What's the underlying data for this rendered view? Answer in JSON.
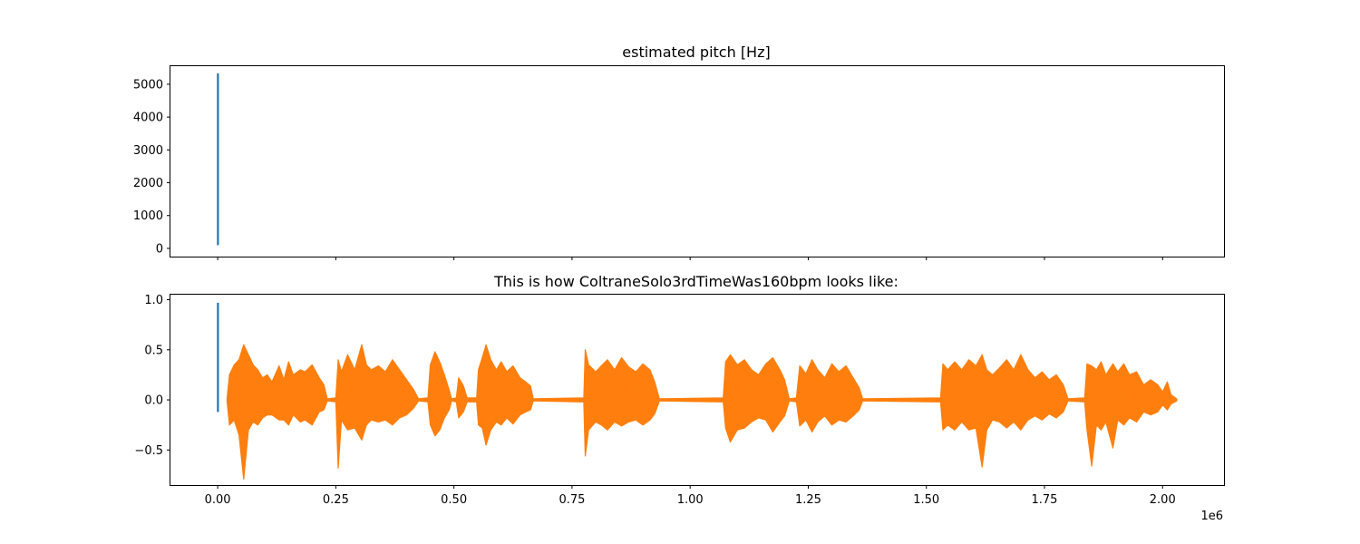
{
  "chart_data": [
    {
      "type": "line",
      "title": "estimated pitch [Hz]",
      "xlabel": "",
      "ylabel": "",
      "xlim": [
        -100000,
        2130000
      ],
      "ylim": [
        -250,
        5550
      ],
      "x_offset_label": "1e6",
      "x_tick_values": [
        0,
        250000,
        500000,
        750000,
        1000000,
        1250000,
        1500000,
        1750000,
        2000000
      ],
      "x_tick_labels_visible": false,
      "y_ticks": [
        0,
        1000,
        2000,
        3000,
        4000,
        5000
      ],
      "y_tick_labels": [
        "0",
        "1000",
        "2000",
        "3000",
        "4000",
        "5000"
      ],
      "grid": false,
      "series": [
        {
          "color": "#1f77b4",
          "description_x_range": [
            0,
            1000
          ],
          "y_min": 100,
          "y_max": 5330
        }
      ]
    },
    {
      "type": "line",
      "title": "This is how ColtraneSolo3rdTimeWas160bpm looks like:",
      "xlabel": "",
      "ylabel": "",
      "xlim": [
        -100000,
        2130000
      ],
      "ylim": [
        -0.85,
        1.05
      ],
      "x_offset_label": "1e6",
      "x_ticks": [
        0,
        250000,
        500000,
        750000,
        1000000,
        1250000,
        1500000,
        1750000,
        2000000
      ],
      "x_tick_labels": [
        "0.00",
        "0.25",
        "0.50",
        "0.75",
        "1.00",
        "1.25",
        "1.50",
        "1.75",
        "2.00"
      ],
      "y_ticks": [
        -0.5,
        0.0,
        0.5,
        1.0
      ],
      "y_tick_labels": [
        "−0.5",
        "0.0",
        "0.5",
        "1.0"
      ],
      "grid": false,
      "series": [
        {
          "color": "#1f77b4",
          "x_range": [
            0,
            1000
          ],
          "y_min": -0.12,
          "y_max": 0.97
        },
        {
          "color": "#ff7f0e",
          "x_range": [
            20000,
            2030000
          ],
          "y_min": -0.79,
          "y_max": 0.55,
          "envelope": [
            [
              20000,
              0.02,
              -0.02
            ],
            [
              25000,
              0.25,
              -0.25
            ],
            [
              35000,
              0.35,
              -0.2
            ],
            [
              45000,
              0.4,
              -0.35
            ],
            [
              55000,
              0.55,
              -0.79
            ],
            [
              65000,
              0.45,
              -0.3
            ],
            [
              75000,
              0.35,
              -0.22
            ],
            [
              85000,
              0.3,
              -0.25
            ],
            [
              95000,
              0.22,
              -0.18
            ],
            [
              105000,
              0.25,
              -0.15
            ],
            [
              115000,
              0.18,
              -0.15
            ],
            [
              130000,
              0.34,
              -0.2
            ],
            [
              140000,
              0.2,
              -0.2
            ],
            [
              150000,
              0.38,
              -0.25
            ],
            [
              160000,
              0.25,
              -0.15
            ],
            [
              175000,
              0.3,
              -0.22
            ],
            [
              185000,
              0.28,
              -0.2
            ],
            [
              200000,
              0.35,
              -0.25
            ],
            [
              215000,
              0.22,
              -0.12
            ],
            [
              225000,
              0.15,
              -0.1
            ],
            [
              232000,
              0.01,
              -0.01
            ],
            [
              250000,
              0.02,
              -0.02
            ],
            [
              255000,
              0.4,
              -0.68
            ],
            [
              262000,
              0.28,
              -0.2
            ],
            [
              275000,
              0.45,
              -0.3
            ],
            [
              290000,
              0.3,
              -0.28
            ],
            [
              305000,
              0.55,
              -0.4
            ],
            [
              315000,
              0.35,
              -0.25
            ],
            [
              325000,
              0.3,
              -0.2
            ],
            [
              340000,
              0.34,
              -0.22
            ],
            [
              355000,
              0.28,
              -0.2
            ],
            [
              370000,
              0.4,
              -0.25
            ],
            [
              385000,
              0.3,
              -0.18
            ],
            [
              400000,
              0.2,
              -0.15
            ],
            [
              415000,
              0.1,
              -0.08
            ],
            [
              425000,
              0.01,
              -0.01
            ],
            [
              445000,
              0.02,
              -0.02
            ],
            [
              450000,
              0.35,
              -0.25
            ],
            [
              460000,
              0.48,
              -0.36
            ],
            [
              470000,
              0.38,
              -0.3
            ],
            [
              480000,
              0.25,
              -0.18
            ],
            [
              490000,
              0.1,
              -0.1
            ],
            [
              495000,
              0.01,
              -0.01
            ],
            [
              505000,
              0.02,
              -0.02
            ],
            [
              510000,
              0.22,
              -0.18
            ],
            [
              520000,
              0.14,
              -0.12
            ],
            [
              528000,
              0.02,
              -0.02
            ],
            [
              548000,
              0.02,
              -0.02
            ],
            [
              552000,
              0.3,
              -0.25
            ],
            [
              560000,
              0.42,
              -0.28
            ],
            [
              568000,
              0.55,
              -0.45
            ],
            [
              578000,
              0.4,
              -0.3
            ],
            [
              590000,
              0.3,
              -0.22
            ],
            [
              600000,
              0.38,
              -0.25
            ],
            [
              612000,
              0.28,
              -0.18
            ],
            [
              625000,
              0.34,
              -0.24
            ],
            [
              640000,
              0.22,
              -0.15
            ],
            [
              652000,
              0.18,
              -0.12
            ],
            [
              662000,
              0.14,
              -0.1
            ],
            [
              668000,
              0.01,
              -0.01
            ],
            [
              775000,
              0.02,
              -0.02
            ],
            [
              778000,
              0.5,
              -0.56
            ],
            [
              785000,
              0.35,
              -0.3
            ],
            [
              800000,
              0.28,
              -0.22
            ],
            [
              812000,
              0.34,
              -0.25
            ],
            [
              825000,
              0.4,
              -0.3
            ],
            [
              840000,
              0.3,
              -0.22
            ],
            [
              855000,
              0.42,
              -0.26
            ],
            [
              870000,
              0.33,
              -0.22
            ],
            [
              885000,
              0.28,
              -0.2
            ],
            [
              900000,
              0.36,
              -0.25
            ],
            [
              915000,
              0.3,
              -0.2
            ],
            [
              925000,
              0.18,
              -0.14
            ],
            [
              935000,
              0.01,
              -0.01
            ],
            [
              1070000,
              0.02,
              -0.02
            ],
            [
              1075000,
              0.38,
              -0.28
            ],
            [
              1085000,
              0.45,
              -0.42
            ],
            [
              1100000,
              0.35,
              -0.3
            ],
            [
              1115000,
              0.4,
              -0.28
            ],
            [
              1130000,
              0.3,
              -0.22
            ],
            [
              1145000,
              0.25,
              -0.18
            ],
            [
              1160000,
              0.36,
              -0.2
            ],
            [
              1175000,
              0.42,
              -0.32
            ],
            [
              1190000,
              0.3,
              -0.22
            ],
            [
              1200000,
              0.2,
              -0.16
            ],
            [
              1210000,
              0.01,
              -0.01
            ],
            [
              1225000,
              0.02,
              -0.02
            ],
            [
              1232000,
              0.34,
              -0.26
            ],
            [
              1245000,
              0.26,
              -0.2
            ],
            [
              1258000,
              0.4,
              -0.32
            ],
            [
              1270000,
              0.3,
              -0.22
            ],
            [
              1285000,
              0.22,
              -0.16
            ],
            [
              1300000,
              0.36,
              -0.25
            ],
            [
              1315000,
              0.28,
              -0.2
            ],
            [
              1330000,
              0.34,
              -0.22
            ],
            [
              1345000,
              0.22,
              -0.16
            ],
            [
              1358000,
              0.12,
              -0.1
            ],
            [
              1365000,
              0.01,
              -0.01
            ],
            [
              1530000,
              0.02,
              -0.02
            ],
            [
              1535000,
              0.36,
              -0.3
            ],
            [
              1545000,
              0.3,
              -0.25
            ],
            [
              1560000,
              0.38,
              -0.3
            ],
            [
              1575000,
              0.3,
              -0.22
            ],
            [
              1590000,
              0.4,
              -0.3
            ],
            [
              1605000,
              0.34,
              -0.28
            ],
            [
              1618000,
              0.45,
              -0.67
            ],
            [
              1628000,
              0.3,
              -0.3
            ],
            [
              1640000,
              0.25,
              -0.2
            ],
            [
              1655000,
              0.32,
              -0.22
            ],
            [
              1670000,
              0.4,
              -0.28
            ],
            [
              1685000,
              0.3,
              -0.22
            ],
            [
              1700000,
              0.45,
              -0.3
            ],
            [
              1715000,
              0.3,
              -0.2
            ],
            [
              1730000,
              0.22,
              -0.16
            ],
            [
              1745000,
              0.28,
              -0.2
            ],
            [
              1760000,
              0.2,
              -0.14
            ],
            [
              1775000,
              0.25,
              -0.18
            ],
            [
              1790000,
              0.15,
              -0.12
            ],
            [
              1800000,
              0.01,
              -0.01
            ],
            [
              1835000,
              0.02,
              -0.02
            ],
            [
              1840000,
              0.36,
              -0.3
            ],
            [
              1850000,
              0.34,
              -0.66
            ],
            [
              1860000,
              0.3,
              -0.25
            ],
            [
              1870000,
              0.38,
              -0.3
            ],
            [
              1880000,
              0.25,
              -0.22
            ],
            [
              1895000,
              0.36,
              -0.48
            ],
            [
              1905000,
              0.28,
              -0.2
            ],
            [
              1918000,
              0.36,
              -0.25
            ],
            [
              1930000,
              0.25,
              -0.18
            ],
            [
              1945000,
              0.28,
              -0.22
            ],
            [
              1960000,
              0.15,
              -0.12
            ],
            [
              1975000,
              0.2,
              -0.15
            ],
            [
              1990000,
              0.15,
              -0.12
            ],
            [
              2000000,
              0.08,
              -0.05
            ],
            [
              2010000,
              0.18,
              -0.1
            ],
            [
              2018000,
              0.05,
              -0.04
            ],
            [
              2030000,
              0.01,
              -0.01
            ]
          ]
        }
      ]
    }
  ]
}
